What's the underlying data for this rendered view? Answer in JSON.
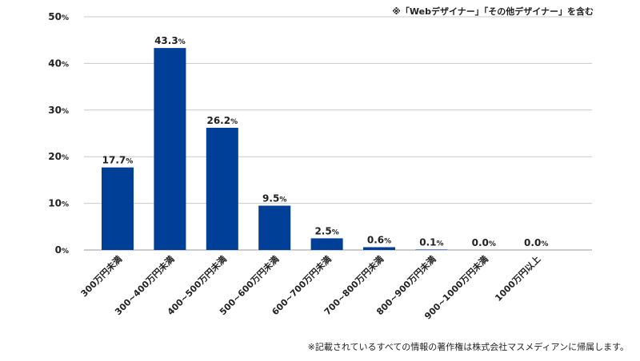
{
  "header": {
    "note": "※「Webデザイナー」「その他デザイナー」を含む"
  },
  "footer": {
    "note": "※記載されているすべての情報の著作権は株式会社マスメディアンに帰属します。"
  },
  "chart_data": {
    "type": "bar",
    "title": "",
    "xlabel": "",
    "ylabel": "",
    "ylim": [
      0,
      50
    ],
    "yticks": [
      0,
      10,
      20,
      30,
      40,
      50
    ],
    "ytick_suffix": "%",
    "value_suffix": "%",
    "grid": true,
    "bar_color": "#003f98",
    "categories": [
      "300万円未満",
      "300~400万円未満",
      "400~500万円未満",
      "500~600万円未満",
      "600~700万円未満",
      "700~800万円未満",
      "800~900万円未満",
      "900~1000万円未満",
      "1000万円以上"
    ],
    "values": [
      17.7,
      43.3,
      26.2,
      9.5,
      2.5,
      0.6,
      0.1,
      0.0,
      0.0
    ],
    "value_labels": [
      "17.7",
      "43.3",
      "26.2",
      "9.5",
      "2.5",
      "0.6",
      "0.1",
      "0.0",
      "0.0"
    ]
  }
}
